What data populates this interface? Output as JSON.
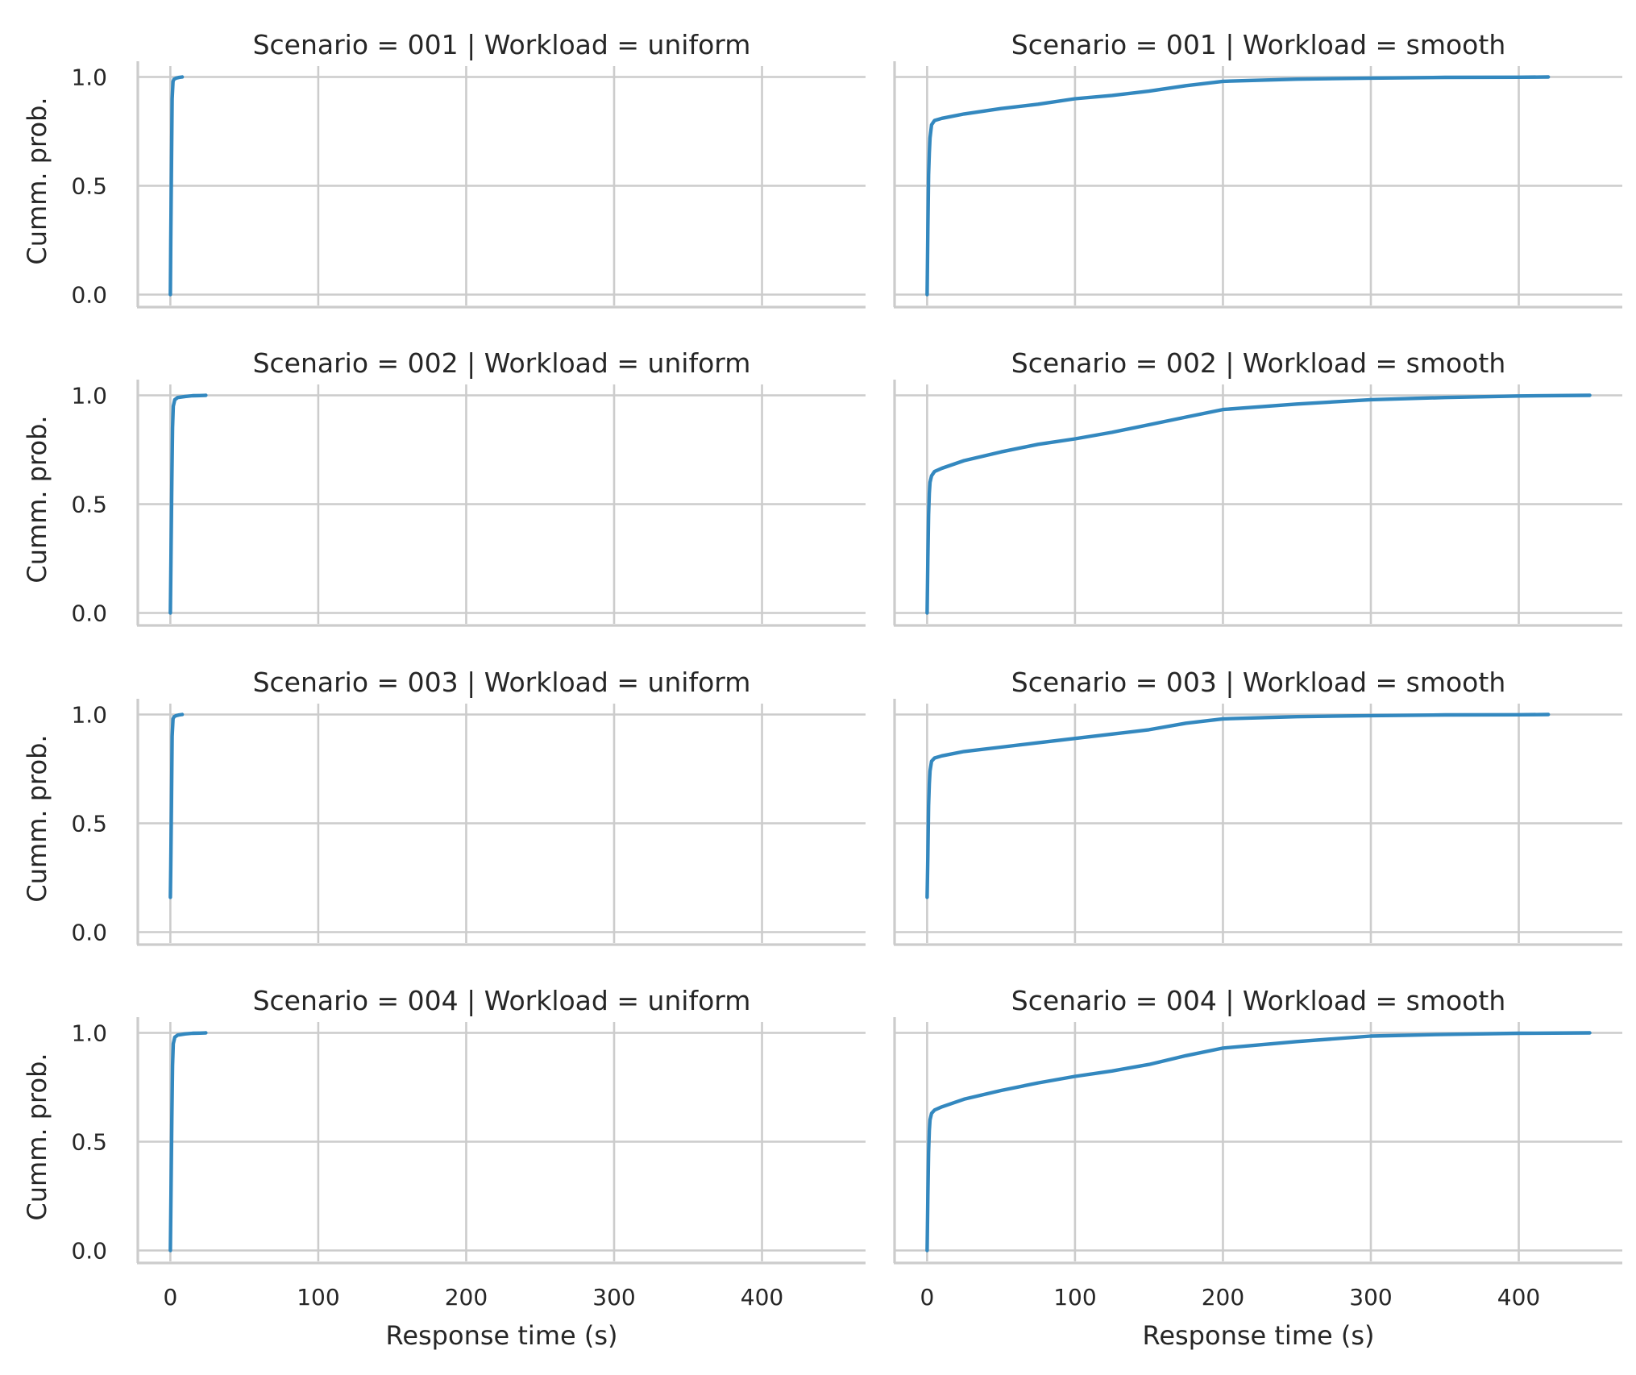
{
  "chart_data": {
    "type": "line",
    "layout": "facet-grid 4 rows x 2 columns, shared x and y axes",
    "grid": true,
    "line_color": "#3388bf",
    "grid_color": "#cccccc",
    "xlabel": "Response time (s)",
    "ylabel": "Cumm. prob.",
    "xlim": [
      -22,
      470
    ],
    "ylim": [
      -0.05,
      1.05
    ],
    "xticks": [
      0,
      100,
      200,
      300,
      400
    ],
    "yticks": [
      0.0,
      0.5,
      1.0
    ],
    "xtick_labels": [
      "0",
      "100",
      "200",
      "300",
      "400"
    ],
    "ytick_labels": [
      "0.0",
      "0.5",
      "1.0"
    ],
    "panels": [
      {
        "title": "Scenario = 001 | Workload = uniform",
        "row": 0,
        "col": 0,
        "x": [
          0,
          0.3,
          0.8,
          1.2,
          1.8,
          2.5,
          4,
          6,
          8
        ],
        "y": [
          0.0,
          0.25,
          0.6,
          0.9,
          0.98,
          0.99,
          0.995,
          0.998,
          1.0
        ]
      },
      {
        "title": "Scenario = 001 | Workload = smooth",
        "row": 0,
        "col": 1,
        "x": [
          0,
          0.5,
          1,
          1.5,
          2,
          3,
          5,
          10,
          25,
          50,
          75,
          100,
          125,
          150,
          175,
          200,
          250,
          300,
          350,
          400,
          420
        ],
        "y": [
          0.0,
          0.3,
          0.55,
          0.65,
          0.72,
          0.78,
          0.8,
          0.81,
          0.83,
          0.855,
          0.875,
          0.9,
          0.915,
          0.935,
          0.96,
          0.98,
          0.99,
          0.995,
          0.998,
          0.999,
          1.0
        ]
      },
      {
        "title": "Scenario = 002 | Workload = uniform",
        "row": 1,
        "col": 0,
        "x": [
          0,
          0.5,
          1,
          1.5,
          2,
          3,
          5,
          10,
          15,
          20,
          24
        ],
        "y": [
          0.0,
          0.3,
          0.6,
          0.85,
          0.95,
          0.98,
          0.99,
          0.995,
          0.998,
          0.999,
          1.0
        ]
      },
      {
        "title": "Scenario = 002 | Workload = smooth",
        "row": 1,
        "col": 1,
        "x": [
          0,
          0.5,
          1,
          1.5,
          2,
          3,
          5,
          10,
          25,
          50,
          75,
          100,
          125,
          150,
          175,
          200,
          250,
          300,
          350,
          400,
          448
        ],
        "y": [
          0.0,
          0.25,
          0.45,
          0.55,
          0.6,
          0.63,
          0.65,
          0.665,
          0.7,
          0.74,
          0.775,
          0.8,
          0.83,
          0.865,
          0.9,
          0.935,
          0.96,
          0.98,
          0.99,
          0.997,
          1.0
        ]
      },
      {
        "title": "Scenario = 003 | Workload = uniform",
        "row": 2,
        "col": 0,
        "x": [
          0,
          0.3,
          0.8,
          1.2,
          1.8,
          2.5,
          4,
          6,
          8
        ],
        "y": [
          0.16,
          0.3,
          0.6,
          0.9,
          0.98,
          0.99,
          0.995,
          0.998,
          1.0
        ]
      },
      {
        "title": "Scenario = 003 | Workload = smooth",
        "row": 2,
        "col": 1,
        "x": [
          0,
          0.5,
          1,
          1.5,
          2,
          3,
          5,
          10,
          25,
          50,
          75,
          100,
          125,
          150,
          175,
          200,
          250,
          300,
          350,
          400,
          420
        ],
        "y": [
          0.16,
          0.35,
          0.58,
          0.68,
          0.74,
          0.785,
          0.8,
          0.81,
          0.83,
          0.85,
          0.87,
          0.89,
          0.91,
          0.93,
          0.96,
          0.98,
          0.99,
          0.995,
          0.998,
          0.999,
          1.0
        ]
      },
      {
        "title": "Scenario = 004 | Workload = uniform",
        "row": 3,
        "col": 0,
        "x": [
          0,
          0.5,
          1,
          1.5,
          2,
          3,
          5,
          10,
          15,
          20,
          24
        ],
        "y": [
          0.0,
          0.3,
          0.6,
          0.85,
          0.95,
          0.98,
          0.99,
          0.995,
          0.998,
          0.999,
          1.0
        ]
      },
      {
        "title": "Scenario = 004 | Workload = smooth",
        "row": 3,
        "col": 1,
        "x": [
          0,
          0.5,
          1,
          1.5,
          2,
          3,
          5,
          10,
          25,
          50,
          75,
          100,
          125,
          150,
          175,
          200,
          250,
          300,
          350,
          400,
          448
        ],
        "y": [
          0.0,
          0.25,
          0.45,
          0.55,
          0.6,
          0.63,
          0.645,
          0.66,
          0.695,
          0.735,
          0.77,
          0.8,
          0.825,
          0.855,
          0.895,
          0.93,
          0.96,
          0.985,
          0.993,
          0.998,
          1.0
        ]
      }
    ]
  }
}
